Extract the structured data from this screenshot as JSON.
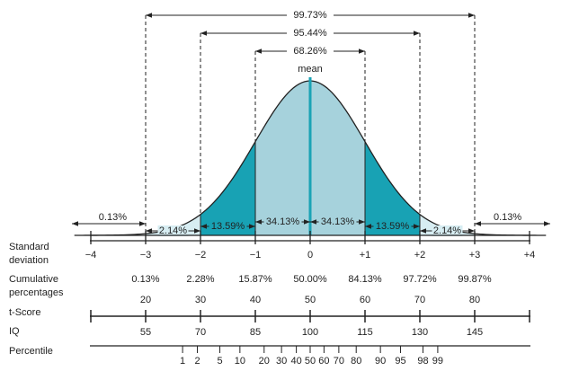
{
  "brackets": [
    "99.73%",
    "95.44%",
    "68.26%"
  ],
  "mean_label": "mean",
  "segments": [
    "0.13%",
    "2.14%",
    "13.59%",
    "34.13%",
    "34.13%",
    "13.59%",
    "2.14%",
    "0.13%"
  ],
  "rows": {
    "standard_deviation": {
      "label": [
        "Standard",
        "deviation"
      ],
      "ticks": [
        "−4",
        "−3",
        "−2",
        "−1",
        "0",
        "+1",
        "+2",
        "+3",
        "+4"
      ]
    },
    "cumulative": {
      "label": [
        "Cumulative",
        "percentages"
      ],
      "values": [
        "0.13%",
        "2.28%",
        "15.87%",
        "50.00%",
        "84.13%",
        "97.72%",
        "99.87%"
      ]
    },
    "t_score": {
      "label": "t-Score",
      "values": [
        20,
        30,
        40,
        50,
        60,
        70,
        80
      ]
    },
    "iq": {
      "label": "IQ",
      "values": [
        55,
        70,
        85,
        100,
        115,
        130,
        145
      ]
    },
    "percentile": {
      "label": "Percentile",
      "values": [
        1,
        2,
        5,
        10,
        20,
        30,
        40,
        50,
        60,
        70,
        80,
        90,
        95,
        98,
        99
      ]
    }
  }
}
